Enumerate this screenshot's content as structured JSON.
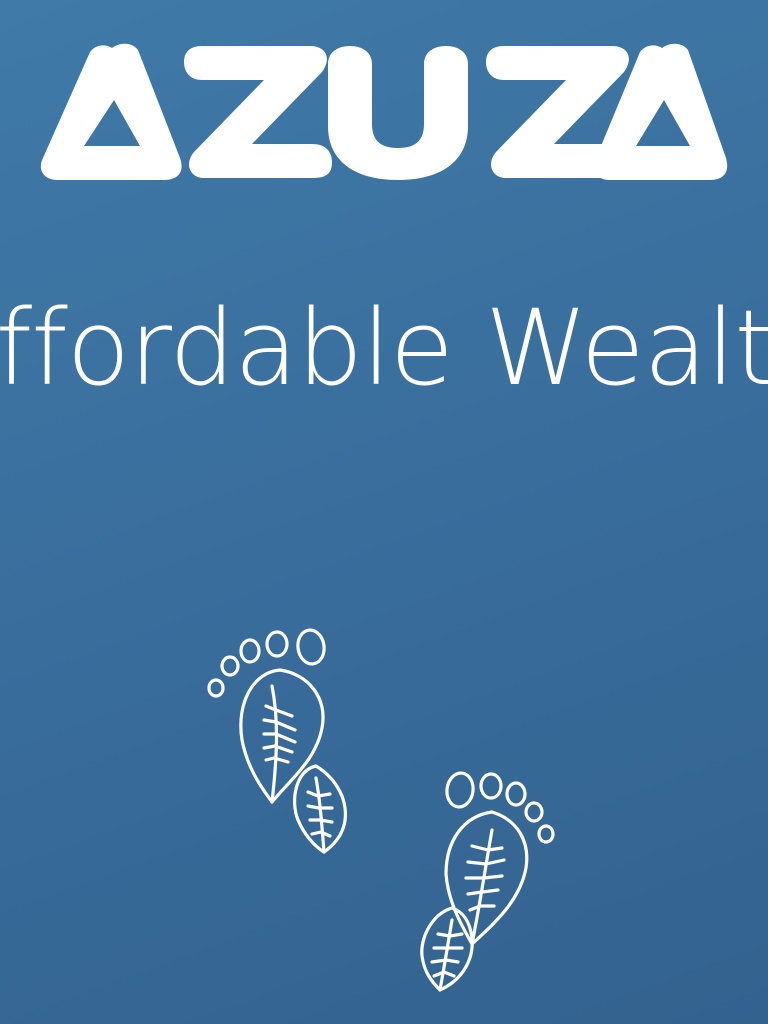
{
  "brand": {
    "logo_text": "AZUZA",
    "logo_icon": "azuza-wordmark-logo"
  },
  "tagline": {
    "text": "Affordable Wealth"
  },
  "illustration": {
    "icon": "leaf-footprints-icon"
  },
  "colors": {
    "background_top": "#3f7aa8",
    "background_bottom": "#33628f",
    "foreground": "#ffffff"
  }
}
